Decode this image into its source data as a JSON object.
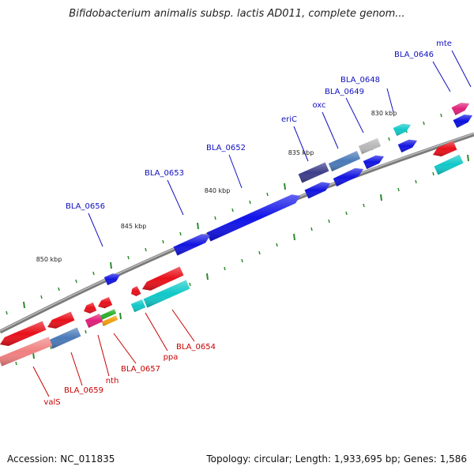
{
  "title": "Bifidobacterium animalis subsp. lactis AD011, complete genom...",
  "footer": {
    "accession": "Accession: NC_011835",
    "topology": "Topology: circular; Length: 1,933,695 bp; Genes: 1,586"
  },
  "colors": {
    "forward_label": "#1010c0",
    "reverse_label": "#c80000",
    "backbone": "#8a8a8a",
    "tick": "#2a8a2a"
  },
  "kbp_markers": [
    "830 kbp",
    "835 kbp",
    "840 kbp",
    "845 kbp",
    "850 kbp"
  ],
  "forward_genes": [
    {
      "name": "mte",
      "color": "#0a10e0"
    },
    {
      "name": "BLA_0646",
      "color": "#e0207a"
    },
    {
      "name": "BLA_0648",
      "color": "#10c8c8"
    },
    {
      "name": "BLA_0649",
      "color": "#1214e0"
    },
    {
      "name": "oxc",
      "color": "#1214e0"
    },
    {
      "name": "eriC",
      "color": "#1214e0"
    },
    {
      "name": "BLA_0652",
      "color": "#1012e8"
    },
    {
      "name": "BLA_0653",
      "color": "#1214e0"
    },
    {
      "name": "BLA_0656",
      "color": "#1214e0"
    }
  ],
  "reverse_genes": [
    {
      "name": "BLA_0654",
      "color": "#e8101a"
    },
    {
      "name": "ppa",
      "color": "#e8101a"
    },
    {
      "name": "BLA_0657",
      "color": "#e8101a"
    },
    {
      "name": "nth",
      "color": "#e8101a"
    },
    {
      "name": "BLA_0659",
      "color": "#e8101a"
    },
    {
      "name": "valS",
      "color": "#e8101a"
    }
  ],
  "unlabeled_features_note": ""
}
